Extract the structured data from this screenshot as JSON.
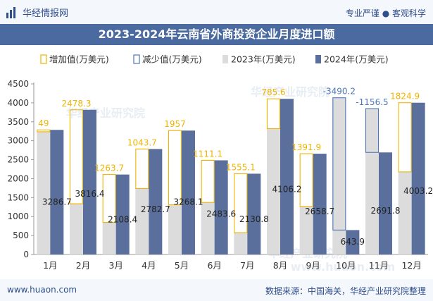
{
  "header": {
    "brand": "华经情报网",
    "tagline": "专业严谨 ● 客观科学"
  },
  "title": "2023-2024年云南省外商投资企业月度进口额",
  "footer": {
    "website": "www.huaon.com",
    "source": "数据来源：中国海关，华经产业研究院整理"
  },
  "watermarks": [
    "华经产业研究院",
    "华经产业研究院",
    "华经产业研究院",
    "www.huaon.com"
  ],
  "chart_data": {
    "type": "bar",
    "categories": [
      "1月",
      "2月",
      "3月",
      "4月",
      "5月",
      "6月",
      "7月",
      "8月",
      "9月",
      "10月",
      "11月",
      "12月"
    ],
    "series": [
      {
        "name": "2023年(万美元)",
        "values": [
          3237.7,
          1338.1,
          844.7,
          1739.0,
          1311.1,
          1372.5,
          575.7,
          3320.6,
          1266.8,
          4134.1,
          3848.3,
          2178.3
        ]
      },
      {
        "name": "2024年(万美元)",
        "values": [
          3286.7,
          3816.4,
          2108.4,
          2782.7,
          3268.1,
          2483.6,
          2130.8,
          4106.2,
          2658.7,
          643.9,
          2691.8,
          4003.2
        ]
      }
    ],
    "change": {
      "increase_name": "增加值(万美元)",
      "decrease_name": "减少值(万美元)",
      "labels": [
        "49",
        "2478.3",
        "1263.7",
        "1043.7",
        "1957",
        "1111.1",
        "1555.1",
        "785.6",
        "1391.9",
        "-3490.2",
        "-1156.5",
        "1824.9"
      ]
    },
    "y_ticks": [
      "0",
      "500",
      "1000",
      "1500",
      "2000",
      "2500",
      "3000",
      "3500",
      "4000",
      "4500"
    ],
    "ylim": [
      0,
      4500
    ],
    "colors": {
      "s2023": "#dcdcdc",
      "s2024": "#5a6f9c",
      "increase": "#f0b400",
      "decrease": "#4f77b8",
      "title_bg": "#4a6aa0"
    },
    "legend_position": "top",
    "grid": false
  }
}
